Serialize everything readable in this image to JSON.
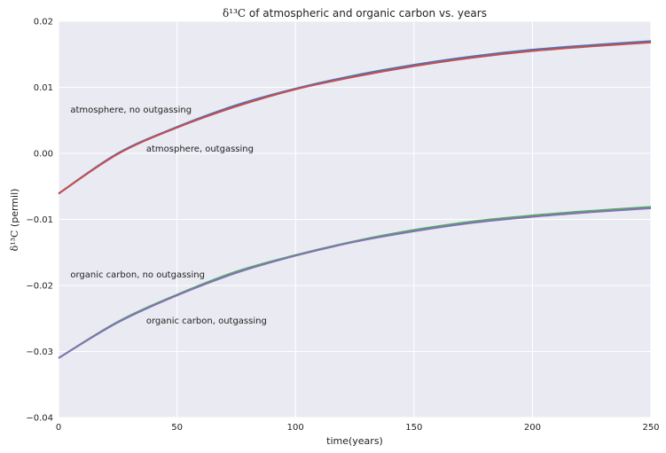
{
  "chart_data": {
    "type": "line",
    "title": "δ¹³C of atmospheric and organic carbon vs. years",
    "title_symbol": "δ¹³C",
    "title_rest": " of atmospheric and organic carbon vs. years",
    "xlabel": "time(years)",
    "ylabel": "δ¹³C (permil)",
    "ylabel_symbol": "δ¹³C",
    "ylabel_rest": " (permil)",
    "xlim": [
      0,
      250
    ],
    "ylim": [
      -0.04,
      0.02
    ],
    "xticks": [
      0,
      50,
      100,
      150,
      200,
      250
    ],
    "xtick_labels": [
      "0",
      "50",
      "100",
      "150",
      "200",
      "250"
    ],
    "yticks": [
      -0.04,
      -0.03,
      -0.02,
      -0.01,
      0.0,
      0.01,
      0.02
    ],
    "ytick_labels": [
      "−0.04",
      "−0.03",
      "−0.02",
      "−0.01",
      "0.00",
      "0.01",
      "0.02"
    ],
    "grid": true,
    "background": "#eaeaf2",
    "x": [
      0,
      25,
      50,
      75,
      100,
      125,
      150,
      175,
      200,
      225,
      250
    ],
    "series": [
      {
        "color": "#4c72b0",
        "values": [
          -0.0061,
          0.0,
          0.004,
          0.0073,
          0.0098,
          0.0118,
          0.0134,
          0.0147,
          0.0157,
          0.0164,
          0.017
        ]
      },
      {
        "color": "#c44e52",
        "values": [
          -0.0061,
          -0.0001,
          0.0039,
          0.0071,
          0.0097,
          0.0116,
          0.0132,
          0.0145,
          0.0155,
          0.0162,
          0.0168
        ]
      },
      {
        "color": "#55a868",
        "values": [
          -0.031,
          -0.0255,
          -0.0214,
          -0.0179,
          -0.0154,
          -0.0133,
          -0.0116,
          -0.0103,
          -0.0094,
          -0.0087,
          -0.0081
        ]
      },
      {
        "color": "#8172b2",
        "values": [
          -0.031,
          -0.0256,
          -0.0215,
          -0.0181,
          -0.0155,
          -0.0134,
          -0.0118,
          -0.0105,
          -0.0096,
          -0.0089,
          -0.0083
        ]
      }
    ],
    "annotations": [
      {
        "text": "atmosphere, no outgassing",
        "x": 5,
        "y": 0.0062
      },
      {
        "text": "atmosphere, outgassing",
        "x": 37,
        "y": 0.0003
      },
      {
        "text": "organic carbon, no outgassing",
        "x": 5,
        "y": -0.0188
      },
      {
        "text": "organic carbon, outgassing",
        "x": 37,
        "y": -0.0258
      }
    ]
  }
}
